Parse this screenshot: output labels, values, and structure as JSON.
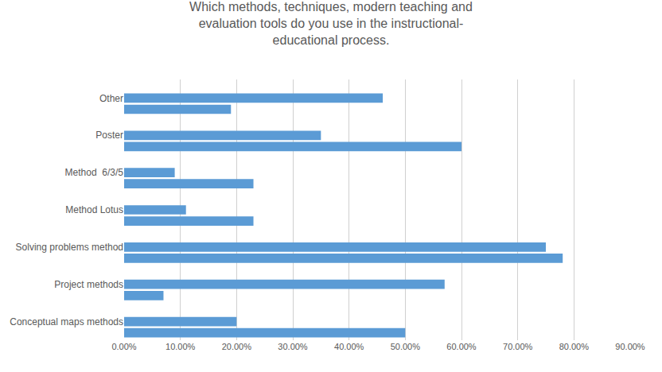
{
  "chart_data": {
    "type": "bar",
    "orientation": "horizontal",
    "title": "Which methods, techniques, modern teaching and\nevaluation tools do you use in the instructional-\neducational process.",
    "categories": [
      "Conceptual maps methods",
      "Project methods",
      "Solving problems method",
      "Method Lotus",
      "Method  6/3/5",
      "Poster",
      "Other"
    ],
    "series": [
      {
        "color": "#5b9bd5",
        "values": [
          0.2,
          0.57,
          0.75,
          0.11,
          0.09,
          0.35,
          0.46
        ]
      },
      {
        "color": "#5b9bd5",
        "values": [
          0.5,
          0.07,
          0.78,
          0.23,
          0.23,
          0.6,
          0.19
        ]
      }
    ],
    "xlim": [
      0,
      0.9
    ],
    "xticks": [
      {
        "value": 0.0,
        "label": "0.00%"
      },
      {
        "value": 0.1,
        "label": "10.00%"
      },
      {
        "value": 0.2,
        "label": "20.00%"
      },
      {
        "value": 0.3,
        "label": "30.00%"
      },
      {
        "value": 0.4,
        "label": "40.00%"
      },
      {
        "value": 0.5,
        "label": "50.00%"
      },
      {
        "value": 0.6,
        "label": "60.00%"
      },
      {
        "value": 0.7,
        "label": "70.00%"
      },
      {
        "value": 0.8,
        "label": "80.00%"
      },
      {
        "value": 0.9,
        "label": "90.00%"
      }
    ],
    "grid": true
  }
}
